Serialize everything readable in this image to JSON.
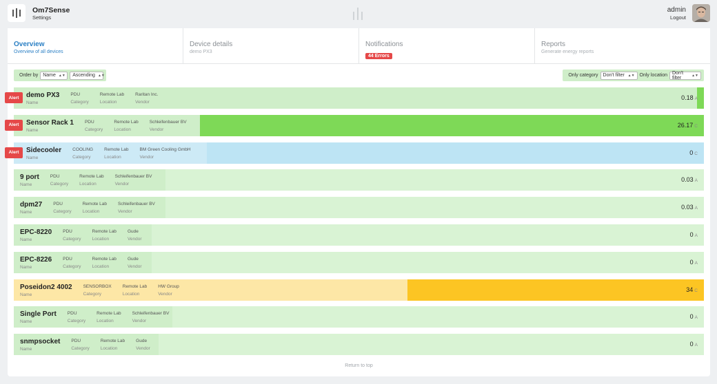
{
  "header": {
    "app_title": "Om7Sense",
    "app_subtitle": "Settings",
    "user_name": "admin",
    "logout_label": "Logout"
  },
  "tabs": [
    {
      "label": "Overview",
      "sub": "Overview of all devices",
      "active": true
    },
    {
      "label": "Device details",
      "sub": "demo PX3"
    },
    {
      "label": "Notifications",
      "badge": "44 Errors"
    },
    {
      "label": "Reports",
      "sub": "Generate energy reports"
    }
  ],
  "filters": {
    "order_by_label": "Order by",
    "order_field": "Name",
    "order_dir": "Ascending",
    "category_label": "Only category",
    "category_value": "Don't filter",
    "location_label": "Only location",
    "location_value": "Don't filter"
  },
  "field_labels": {
    "name": "Name",
    "category": "Category",
    "location": "Location",
    "vendor": "Vendor"
  },
  "alert_label": "Alert",
  "devices": [
    {
      "name": "demo PX3",
      "category": "PDU",
      "location": "Remote Lab",
      "vendor": "Raritan Inc.",
      "value": "0.18",
      "unit": "A",
      "alert": true,
      "bar_fraction": 0.01,
      "color": "#cfeec9",
      "fill": "#7ed957"
    },
    {
      "name": "Sensor Rack 1",
      "category": "PDU",
      "location": "Remote Lab",
      "vendor": "Schleifenbauer BV",
      "value": "26.17",
      "unit": "C",
      "alert": true,
      "bar_fraction": 0.73,
      "color": "#cfeec9",
      "fill": "#7ed957"
    },
    {
      "name": "Sidecooler",
      "category": "COOLING",
      "location": "Remote Lab",
      "vendor": "BM Green Cooling GmbH",
      "value": "0",
      "unit": "C",
      "alert": true,
      "bar_fraction": 0.72,
      "color": "#cdeaf6",
      "fill": "#bde4f4"
    },
    {
      "name": "9 port",
      "category": "PDU",
      "location": "Remote Lab",
      "vendor": "Schleifenbauer BV",
      "value": "0.03",
      "unit": "A",
      "alert": false,
      "bar_fraction": 0.78,
      "color": "#cfeec9",
      "fill": "#d9f3d4"
    },
    {
      "name": "dpm27",
      "category": "PDU",
      "location": "Remote Lab",
      "vendor": "Schleifenbauer BV",
      "value": "0.03",
      "unit": "A",
      "alert": false,
      "bar_fraction": 0.78,
      "color": "#cfeec9",
      "fill": "#d9f3d4"
    },
    {
      "name": "EPC-8220",
      "category": "PDU",
      "location": "Remote Lab",
      "vendor": "Gude",
      "value": "0",
      "unit": "A",
      "alert": false,
      "bar_fraction": 0.8,
      "color": "#cfeec9",
      "fill": "#d9f3d4"
    },
    {
      "name": "EPC-8226",
      "category": "PDU",
      "location": "Remote Lab",
      "vendor": "Gude",
      "value": "0",
      "unit": "A",
      "alert": false,
      "bar_fraction": 0.8,
      "color": "#cfeec9",
      "fill": "#d9f3d4"
    },
    {
      "name": "Poseidon2 4002",
      "category": "SENSORBOX",
      "location": "Remote Lab",
      "vendor": "HW Group",
      "value": "34",
      "unit": "C",
      "alert": false,
      "bar_fraction": 0.43,
      "color": "#fde7a6",
      "fill": "#fcc523"
    },
    {
      "name": "Single Port",
      "category": "PDU",
      "location": "Remote Lab",
      "vendor": "Schleifenbauer BV",
      "value": "0",
      "unit": "A",
      "alert": false,
      "bar_fraction": 0.77,
      "color": "#cfeec9",
      "fill": "#d9f3d4"
    },
    {
      "name": "snmpsocket",
      "category": "PDU",
      "location": "Remote Lab",
      "vendor": "Gude",
      "value": "0",
      "unit": "A",
      "alert": false,
      "bar_fraction": 0.79,
      "color": "#cfeec9",
      "fill": "#d9f3d4"
    }
  ],
  "footer": {
    "return_top": "Return to top"
  }
}
